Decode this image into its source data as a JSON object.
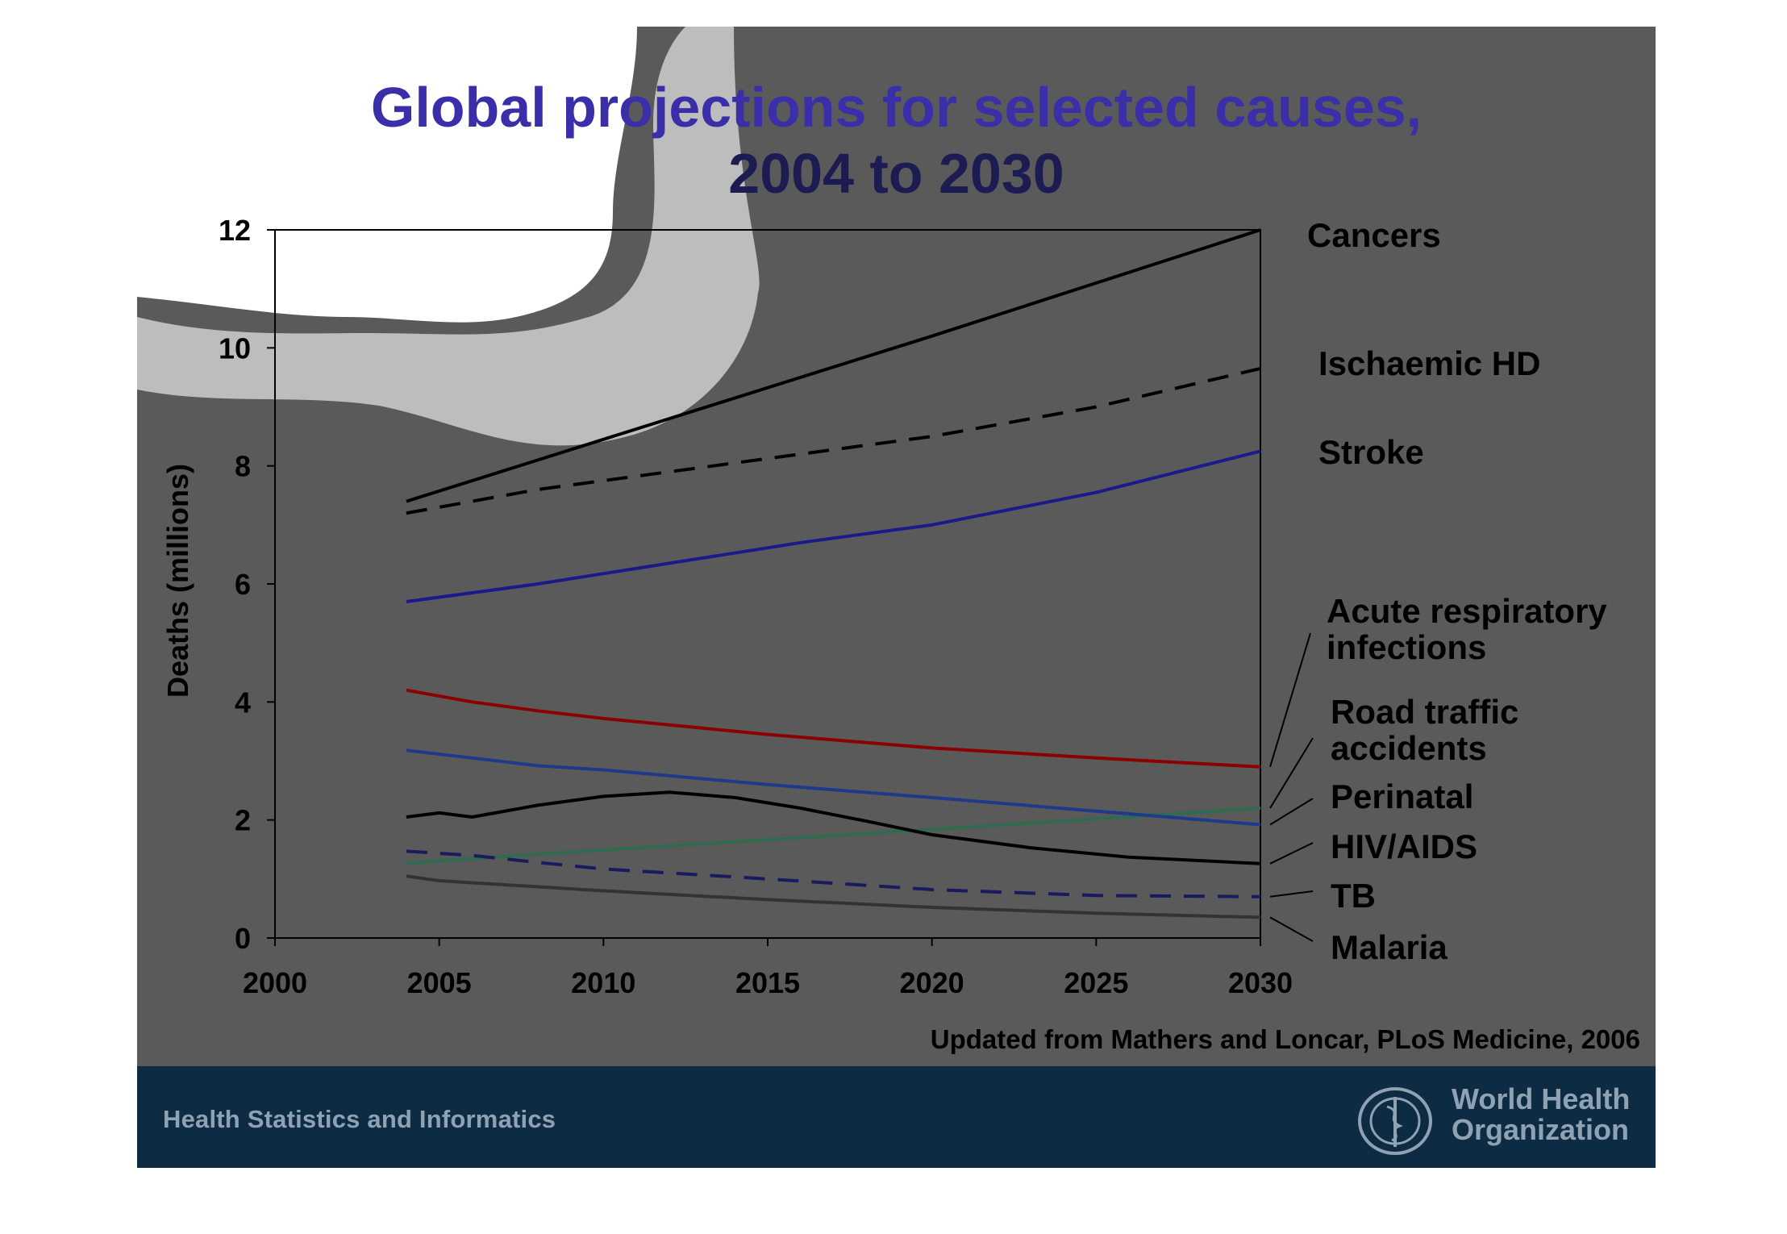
{
  "slide": {
    "title_line1": "Global projections for selected causes,",
    "title_line2": "2004 to 2030",
    "source": "Updated from Mathers and Loncar, PLoS Medicine, 2006",
    "footer_left": "Health Statistics and Informatics",
    "org_name_line1": "World Health",
    "org_name_line2": "Organization"
  },
  "colors": {
    "background": "#5a5a5a",
    "footer": "#0d2c43",
    "title_light": "#3a2fa8",
    "title_dark": "#1c1b52"
  },
  "chart_data": {
    "type": "line",
    "title": "Global projections for selected causes, 2004 to 2030",
    "ylabel": "Deaths (millions)",
    "xlabel": "",
    "xlim": [
      2000,
      2030
    ],
    "ylim": [
      0,
      12
    ],
    "x_ticks": [
      2000,
      2005,
      2010,
      2015,
      2020,
      2025,
      2030
    ],
    "y_ticks": [
      0,
      2,
      4,
      6,
      8,
      10,
      12
    ],
    "grid": false,
    "legend": "labels at right end of each line",
    "series": [
      {
        "name": "Cancers",
        "color": "#000000",
        "dash": false,
        "x": [
          2004,
          2008,
          2012,
          2016,
          2020,
          2025,
          2030
        ],
        "y": [
          7.4,
          8.1,
          8.8,
          9.5,
          10.2,
          11.1,
          12.0
        ]
      },
      {
        "name": "Ischaemic HD",
        "color": "#000000",
        "dash": true,
        "x": [
          2004,
          2008,
          2012,
          2016,
          2020,
          2025,
          2030
        ],
        "y": [
          7.2,
          7.6,
          7.9,
          8.2,
          8.5,
          9.0,
          9.65
        ]
      },
      {
        "name": "Stroke",
        "color": "#1a1a8a",
        "dash": false,
        "x": [
          2004,
          2008,
          2012,
          2016,
          2020,
          2025,
          2030
        ],
        "y": [
          5.7,
          6.0,
          6.35,
          6.7,
          7.0,
          7.55,
          8.25
        ]
      },
      {
        "name": "Acute respiratory infections",
        "color": "#8b0000",
        "dash": false,
        "x": [
          2004,
          2006,
          2008,
          2010,
          2015,
          2020,
          2025,
          2030
        ],
        "y": [
          4.2,
          4.0,
          3.85,
          3.72,
          3.45,
          3.22,
          3.05,
          2.9
        ]
      },
      {
        "name": "Road traffic accidents",
        "color": "#2e6b4f",
        "dash": false,
        "x": [
          2004,
          2008,
          2012,
          2016,
          2020,
          2025,
          2030
        ],
        "y": [
          1.27,
          1.42,
          1.56,
          1.7,
          1.84,
          2.02,
          2.2
        ]
      },
      {
        "name": "Perinatal",
        "color": "#1e3a8a",
        "dash": false,
        "x": [
          2004,
          2006,
          2008,
          2010,
          2015,
          2020,
          2025,
          2030
        ],
        "y": [
          3.18,
          3.05,
          2.92,
          2.85,
          2.6,
          2.38,
          2.15,
          1.92
        ]
      },
      {
        "name": "HIV/AIDS",
        "color": "#000000",
        "dash": false,
        "x": [
          2004,
          2005,
          2006,
          2008,
          2010,
          2012,
          2014,
          2016,
          2018,
          2020,
          2023,
          2026,
          2030
        ],
        "y": [
          2.05,
          2.12,
          2.05,
          2.25,
          2.4,
          2.47,
          2.38,
          2.2,
          1.98,
          1.75,
          1.53,
          1.37,
          1.26
        ]
      },
      {
        "name": "TB",
        "color": "#1a1a5e",
        "dash": true,
        "x": [
          2004,
          2006,
          2008,
          2010,
          2015,
          2020,
          2025,
          2030
        ],
        "y": [
          1.47,
          1.4,
          1.28,
          1.17,
          1.0,
          0.82,
          0.72,
          0.7
        ]
      },
      {
        "name": "Malaria",
        "color": "#333333",
        "dash": false,
        "x": [
          2004,
          2005,
          2010,
          2015,
          2020,
          2025,
          2030
        ],
        "y": [
          1.05,
          0.97,
          0.8,
          0.65,
          0.52,
          0.42,
          0.35
        ]
      }
    ]
  }
}
